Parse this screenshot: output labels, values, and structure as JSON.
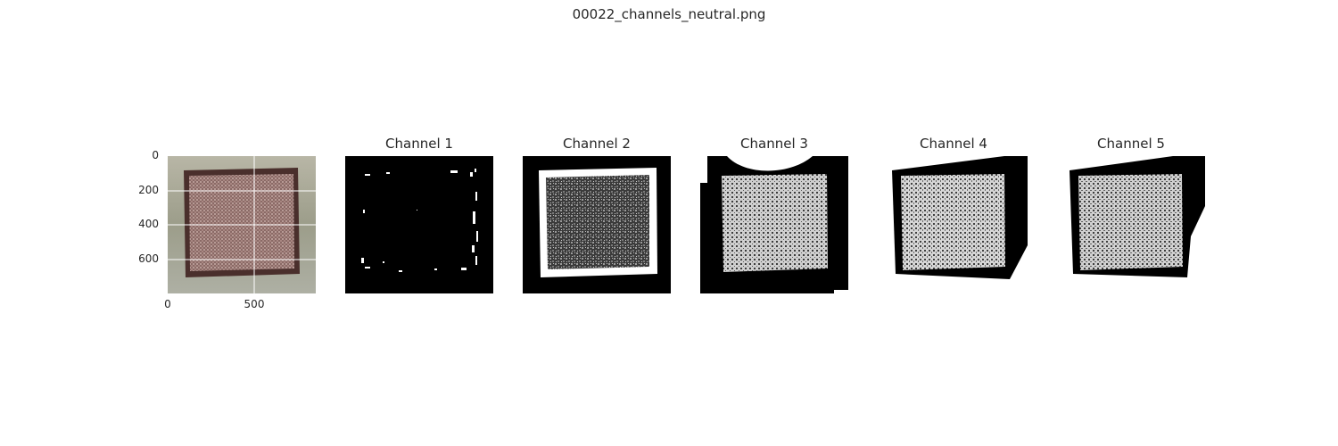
{
  "figure_title": "00022_channels_neutral.png",
  "original_panel": {
    "yticks": [
      "0",
      "200",
      "400",
      "600"
    ],
    "xticks": [
      "0",
      "500"
    ]
  },
  "channel_panels": [
    {
      "title": "Channel 1"
    },
    {
      "title": "Channel 2"
    },
    {
      "title": "Channel 3"
    },
    {
      "title": "Channel 4"
    },
    {
      "title": "Channel 5"
    }
  ],
  "colors": {
    "background": "#ffffff",
    "mask_black": "#000000",
    "mask_white": "#ffffff",
    "text": "#262626"
  }
}
